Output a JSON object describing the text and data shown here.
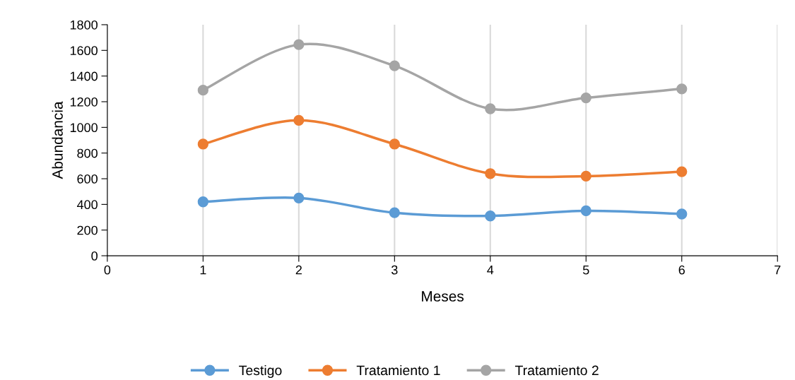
{
  "chart_data": {
    "type": "line",
    "xlabel": "Meses",
    "ylabel": "Abundancia",
    "x": [
      1,
      2,
      3,
      4,
      5,
      6
    ],
    "series": [
      {
        "name": "Testigo",
        "color": "#5b9bd5",
        "values": [
          420,
          450,
          335,
          310,
          350,
          325
        ]
      },
      {
        "name": "Tratamiento 1",
        "color": "#ed7d31",
        "values": [
          870,
          1055,
          870,
          640,
          620,
          655
        ]
      },
      {
        "name": "Tratamiento 2",
        "color": "#a5a5a5",
        "values": [
          1290,
          1645,
          1480,
          1145,
          1230,
          1300
        ]
      }
    ],
    "xlim": [
      0,
      7
    ],
    "xticks": [
      0,
      1,
      2,
      3,
      4,
      5,
      6,
      7
    ],
    "ylim": [
      0,
      1800
    ],
    "yticks": [
      0,
      200,
      400,
      600,
      800,
      1000,
      1200,
      1400,
      1600,
      1800
    ],
    "grid": "x",
    "legend": "bottom",
    "marker": "circle",
    "line_style": "solid"
  }
}
